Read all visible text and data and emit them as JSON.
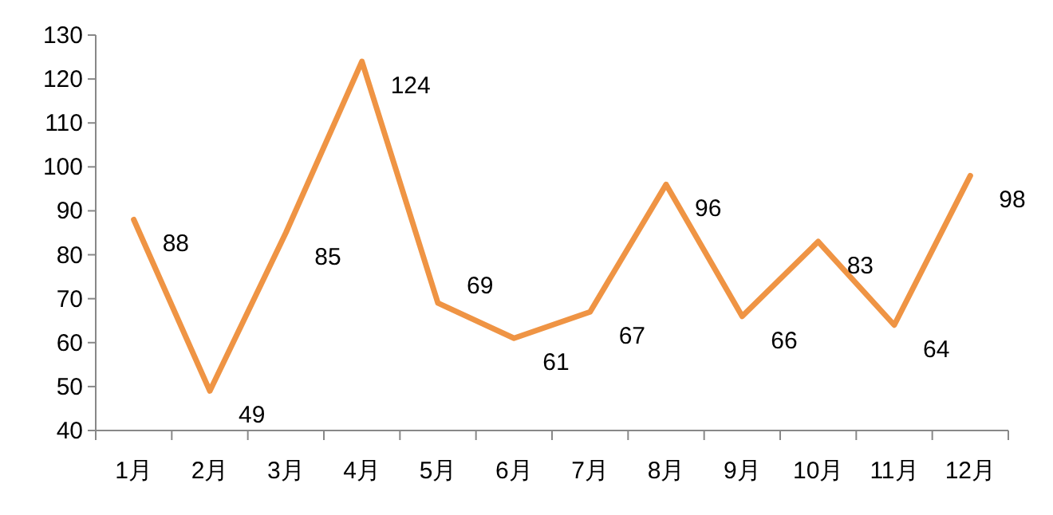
{
  "chart_data": {
    "type": "line",
    "categories": [
      "1月",
      "2月",
      "3月",
      "4月",
      "5月",
      "6月",
      "7月",
      "8月",
      "9月",
      "10月",
      "11月",
      "12月"
    ],
    "series": [
      {
        "color": "#ef9444",
        "values": [
          88,
          49,
          85,
          124,
          69,
          61,
          67,
          96,
          66,
          83,
          64,
          98
        ]
      }
    ],
    "ylim": [
      40,
      130
    ],
    "yticks": [
      40,
      50,
      60,
      70,
      80,
      90,
      100,
      110,
      120,
      130
    ],
    "grid": false,
    "marker": "none",
    "line_style": "solid",
    "data_labels": true
  }
}
